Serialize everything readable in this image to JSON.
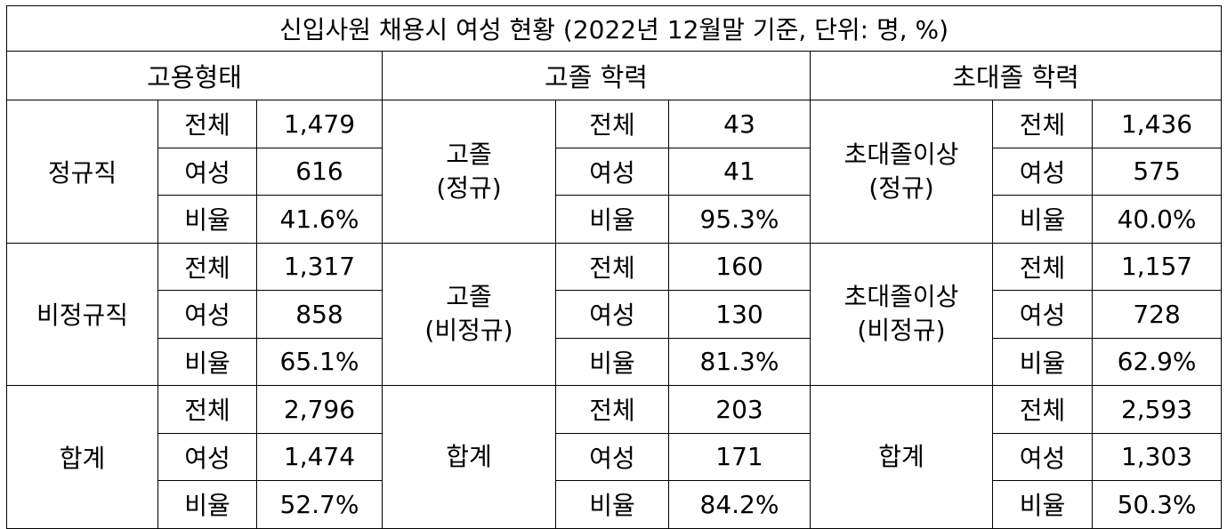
{
  "title": "신입사원 채용시 여성 현황 (2022년 12월말 기준, 단위: 명, %)",
  "headers": [
    "고용형태",
    "고졸 학력",
    "초대졸 학력"
  ],
  "metrics": [
    "전체",
    "여성",
    "비율"
  ],
  "blocks": [
    {
      "employment": "정규직",
      "highschool": {
        "line1": "고졸",
        "line2": "(정규)",
        "values": [
          "43",
          "41",
          "95.3%"
        ]
      },
      "college": {
        "line1": "초대졸이상",
        "line2": "(정규)",
        "values": [
          "1,436",
          "575",
          "40.0%"
        ]
      },
      "values": [
        "1,479",
        "616",
        "41.6%"
      ]
    },
    {
      "employment": "비정규직",
      "highschool": {
        "line1": "고졸",
        "line2": "(비정규)",
        "values": [
          "160",
          "130",
          "81.3%"
        ]
      },
      "college": {
        "line1": "초대졸이상",
        "line2": "(비정규)",
        "values": [
          "1,157",
          "728",
          "62.9%"
        ]
      },
      "values": [
        "1,317",
        "858",
        "65.1%"
      ]
    },
    {
      "employment": "합계",
      "highschool": {
        "line1": "합계",
        "line2": "",
        "values": [
          "203",
          "171",
          "84.2%"
        ]
      },
      "college": {
        "line1": "합계",
        "line2": "",
        "values": [
          "2,593",
          "1,303",
          "50.3%"
        ]
      },
      "values": [
        "2,796",
        "1,474",
        "52.7%"
      ]
    }
  ]
}
